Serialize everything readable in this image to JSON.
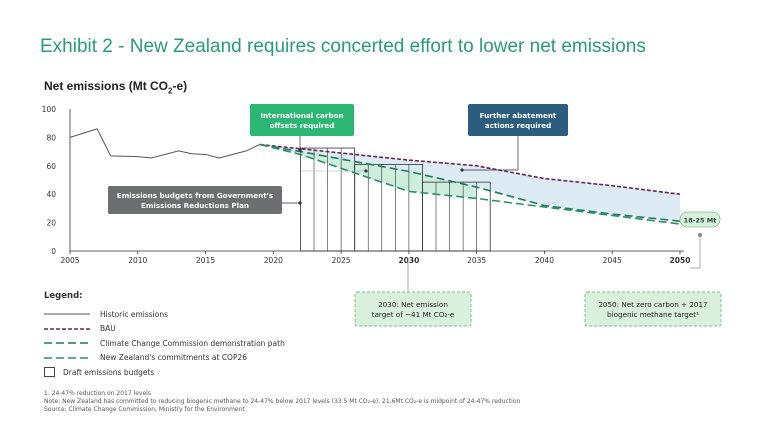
{
  "title": "Exhibit 2 - New Zealand requires concerted effort to lower net emissions",
  "subtitle_main": "Net emissions (Mt CO",
  "subtitle_sub": "2",
  "subtitle_end": "-e)",
  "callouts": {
    "intl_offsets": "International carbon offsets required",
    "further_abatement": "Further abatement actions required",
    "budgets": "Emissions budgets from Government's Emissions Reductions Plan",
    "range_label": "18-25 Mt",
    "target_2030": "2030: Net emissions target of ~41 Mt CO₂-e",
    "target_2050": "2050: Net zero carbon + 2017 biogenic methane target¹"
  },
  "legend": {
    "title": "Legend:",
    "items": [
      {
        "label": "Historic emissions",
        "style": "solid",
        "color": "#555555"
      },
      {
        "label": "BAU",
        "style": "dash",
        "color": "#6b2457"
      },
      {
        "label": "Climate Change Commission demonstration path",
        "style": "dash",
        "color": "#1f7a5c"
      },
      {
        "label": "New Zealand's commitments at COP26",
        "style": "dash",
        "color": "#2a8f6a"
      },
      {
        "label": "Draft emissions budgets",
        "style": "box",
        "color": "#444444"
      }
    ]
  },
  "footnotes": [
    "1. 24-47% reduction on 2017 levels",
    "Note: New Zealand has committed to reducing biogenic methane to 24-47% below 2017 levels (33.5 Mt CO₂-e), 21.6Mt CO₂-e is midpoint of 24-47% reduction",
    "Source: Climate Change Commission, Ministry for the Environment"
  ],
  "colors": {
    "title": "#2a9d74",
    "green_box": "#2bb673",
    "blue_box": "#2b5d7e",
    "gray_box": "#6d6e71",
    "callout_fill": "#d8f0dc",
    "callout_border": "#7cc08a",
    "gap_fill": "#dcebf4",
    "offset_fill": "#cdeedd"
  },
  "chart_data": {
    "type": "line",
    "xlim": [
      2005,
      2050
    ],
    "ylim": [
      0,
      100
    ],
    "x_ticks": [
      2005,
      2010,
      2015,
      2020,
      2025,
      2030,
      2035,
      2040,
      2045,
      2050
    ],
    "x_ticks_bold": [
      2030,
      2050
    ],
    "y_ticks": [
      0,
      20,
      40,
      60,
      80,
      100
    ],
    "grid": false,
    "series": [
      {
        "name": "Historic emissions",
        "x": [
          2005,
          2007,
          2008,
          2010,
          2011,
          2013,
          2014,
          2015,
          2016,
          2018,
          2019
        ],
        "y": [
          80,
          86,
          67,
          66.5,
          65.5,
          70.5,
          68.5,
          68,
          65.5,
          70.5,
          75
        ]
      },
      {
        "name": "BAU",
        "x": [
          2019,
          2022,
          2026,
          2030,
          2035,
          2040,
          2045,
          2050
        ],
        "y": [
          75,
          72,
          68,
          64,
          60,
          51,
          46,
          40
        ]
      },
      {
        "name": "Climate Change Commission demonstration path",
        "x": [
          2019,
          2022,
          2026,
          2030,
          2035,
          2040,
          2045,
          2050
        ],
        "y": [
          75,
          70,
          63,
          56,
          45,
          32,
          26,
          21
        ]
      },
      {
        "name": "New Zealand's commitments at COP26",
        "x": [
          2019,
          2022,
          2026,
          2030,
          2035,
          2040,
          2045,
          2050
        ],
        "y": [
          75,
          68,
          55,
          42,
          37,
          31,
          25,
          19
        ]
      }
    ],
    "emissions_budgets": [
      {
        "years": [
          2022,
          2025
        ],
        "value": 72.5
      },
      {
        "years": [
          2026,
          2030
        ],
        "value": 61
      },
      {
        "years": [
          2031,
          2035
        ],
        "value": 48.5
      }
    ]
  }
}
